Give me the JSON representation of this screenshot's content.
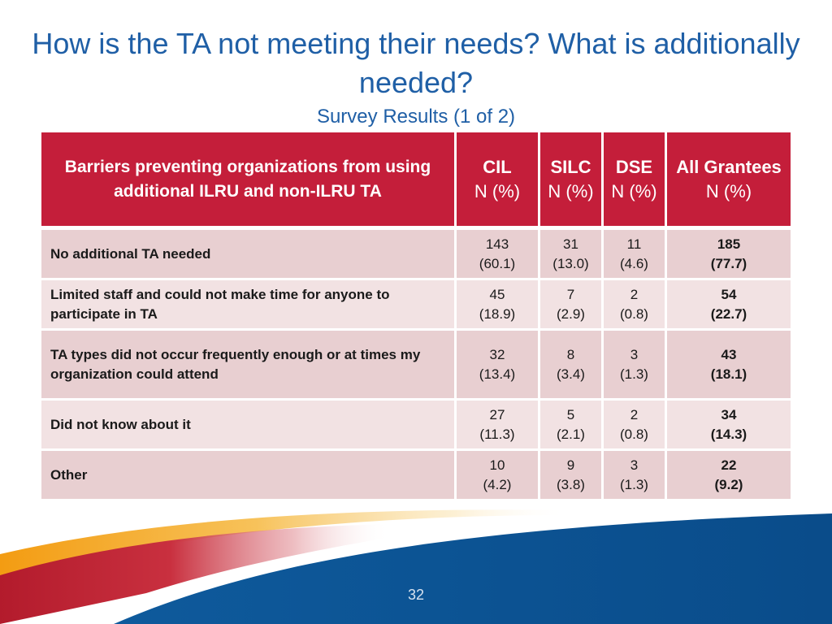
{
  "slide": {
    "title": "How is the TA not meeting their needs? What is additionally needed?",
    "subtitle": "Survey Results (1 of 2)",
    "page_number": "32"
  },
  "table": {
    "headers": [
      {
        "label": "Barriers preventing organizations from using additional ILRU and non-ILRU TA",
        "sub": ""
      },
      {
        "label": "CIL",
        "sub": "N (%)"
      },
      {
        "label": "SILC",
        "sub": "N (%)"
      },
      {
        "label": "DSE",
        "sub": "N (%)"
      },
      {
        "label": "All Grantees",
        "sub": "N (%)"
      }
    ],
    "rows": [
      {
        "barrier": "No additional TA needed",
        "cil": {
          "n": "143",
          "pct": "(60.1)"
        },
        "silc": {
          "n": "31",
          "pct": "(13.0)"
        },
        "dse": {
          "n": "11",
          "pct": "(4.6)"
        },
        "all": {
          "n": "185",
          "pct": "(77.7)"
        }
      },
      {
        "barrier": "Limited staff and could not make time for anyone to participate in TA",
        "cil": {
          "n": "45",
          "pct": "(18.9)"
        },
        "silc": {
          "n": "7",
          "pct": "(2.9)"
        },
        "dse": {
          "n": "2",
          "pct": "(0.8)"
        },
        "all": {
          "n": "54",
          "pct": "(22.7)"
        }
      },
      {
        "barrier": "TA types did not occur frequently enough or at times my organization could attend",
        "cil": {
          "n": "32",
          "pct": "(13.4)"
        },
        "silc": {
          "n": "8",
          "pct": "(3.4)"
        },
        "dse": {
          "n": "3",
          "pct": "(1.3)"
        },
        "all": {
          "n": "43",
          "pct": "(18.1)"
        }
      },
      {
        "barrier": "Did not know about it",
        "cil": {
          "n": "27",
          "pct": "(11.3)"
        },
        "silc": {
          "n": "5",
          "pct": "(2.1)"
        },
        "dse": {
          "n": "2",
          "pct": "(0.8)"
        },
        "all": {
          "n": "34",
          "pct": "(14.3)"
        }
      },
      {
        "barrier": "Other",
        "cil": {
          "n": "10",
          "pct": "(4.2)"
        },
        "silc": {
          "n": "9",
          "pct": "(3.8)"
        },
        "dse": {
          "n": "3",
          "pct": "(1.3)"
        },
        "all": {
          "n": "22",
          "pct": "(9.2)"
        }
      }
    ]
  },
  "colors": {
    "title_blue": "#1f5fa6",
    "header_red": "#c41e3a",
    "row_odd": "#e8cfd1",
    "row_even": "#f2e2e3",
    "swoosh_blue": "#0b4f8f",
    "swoosh_orange": "#f5a623"
  }
}
